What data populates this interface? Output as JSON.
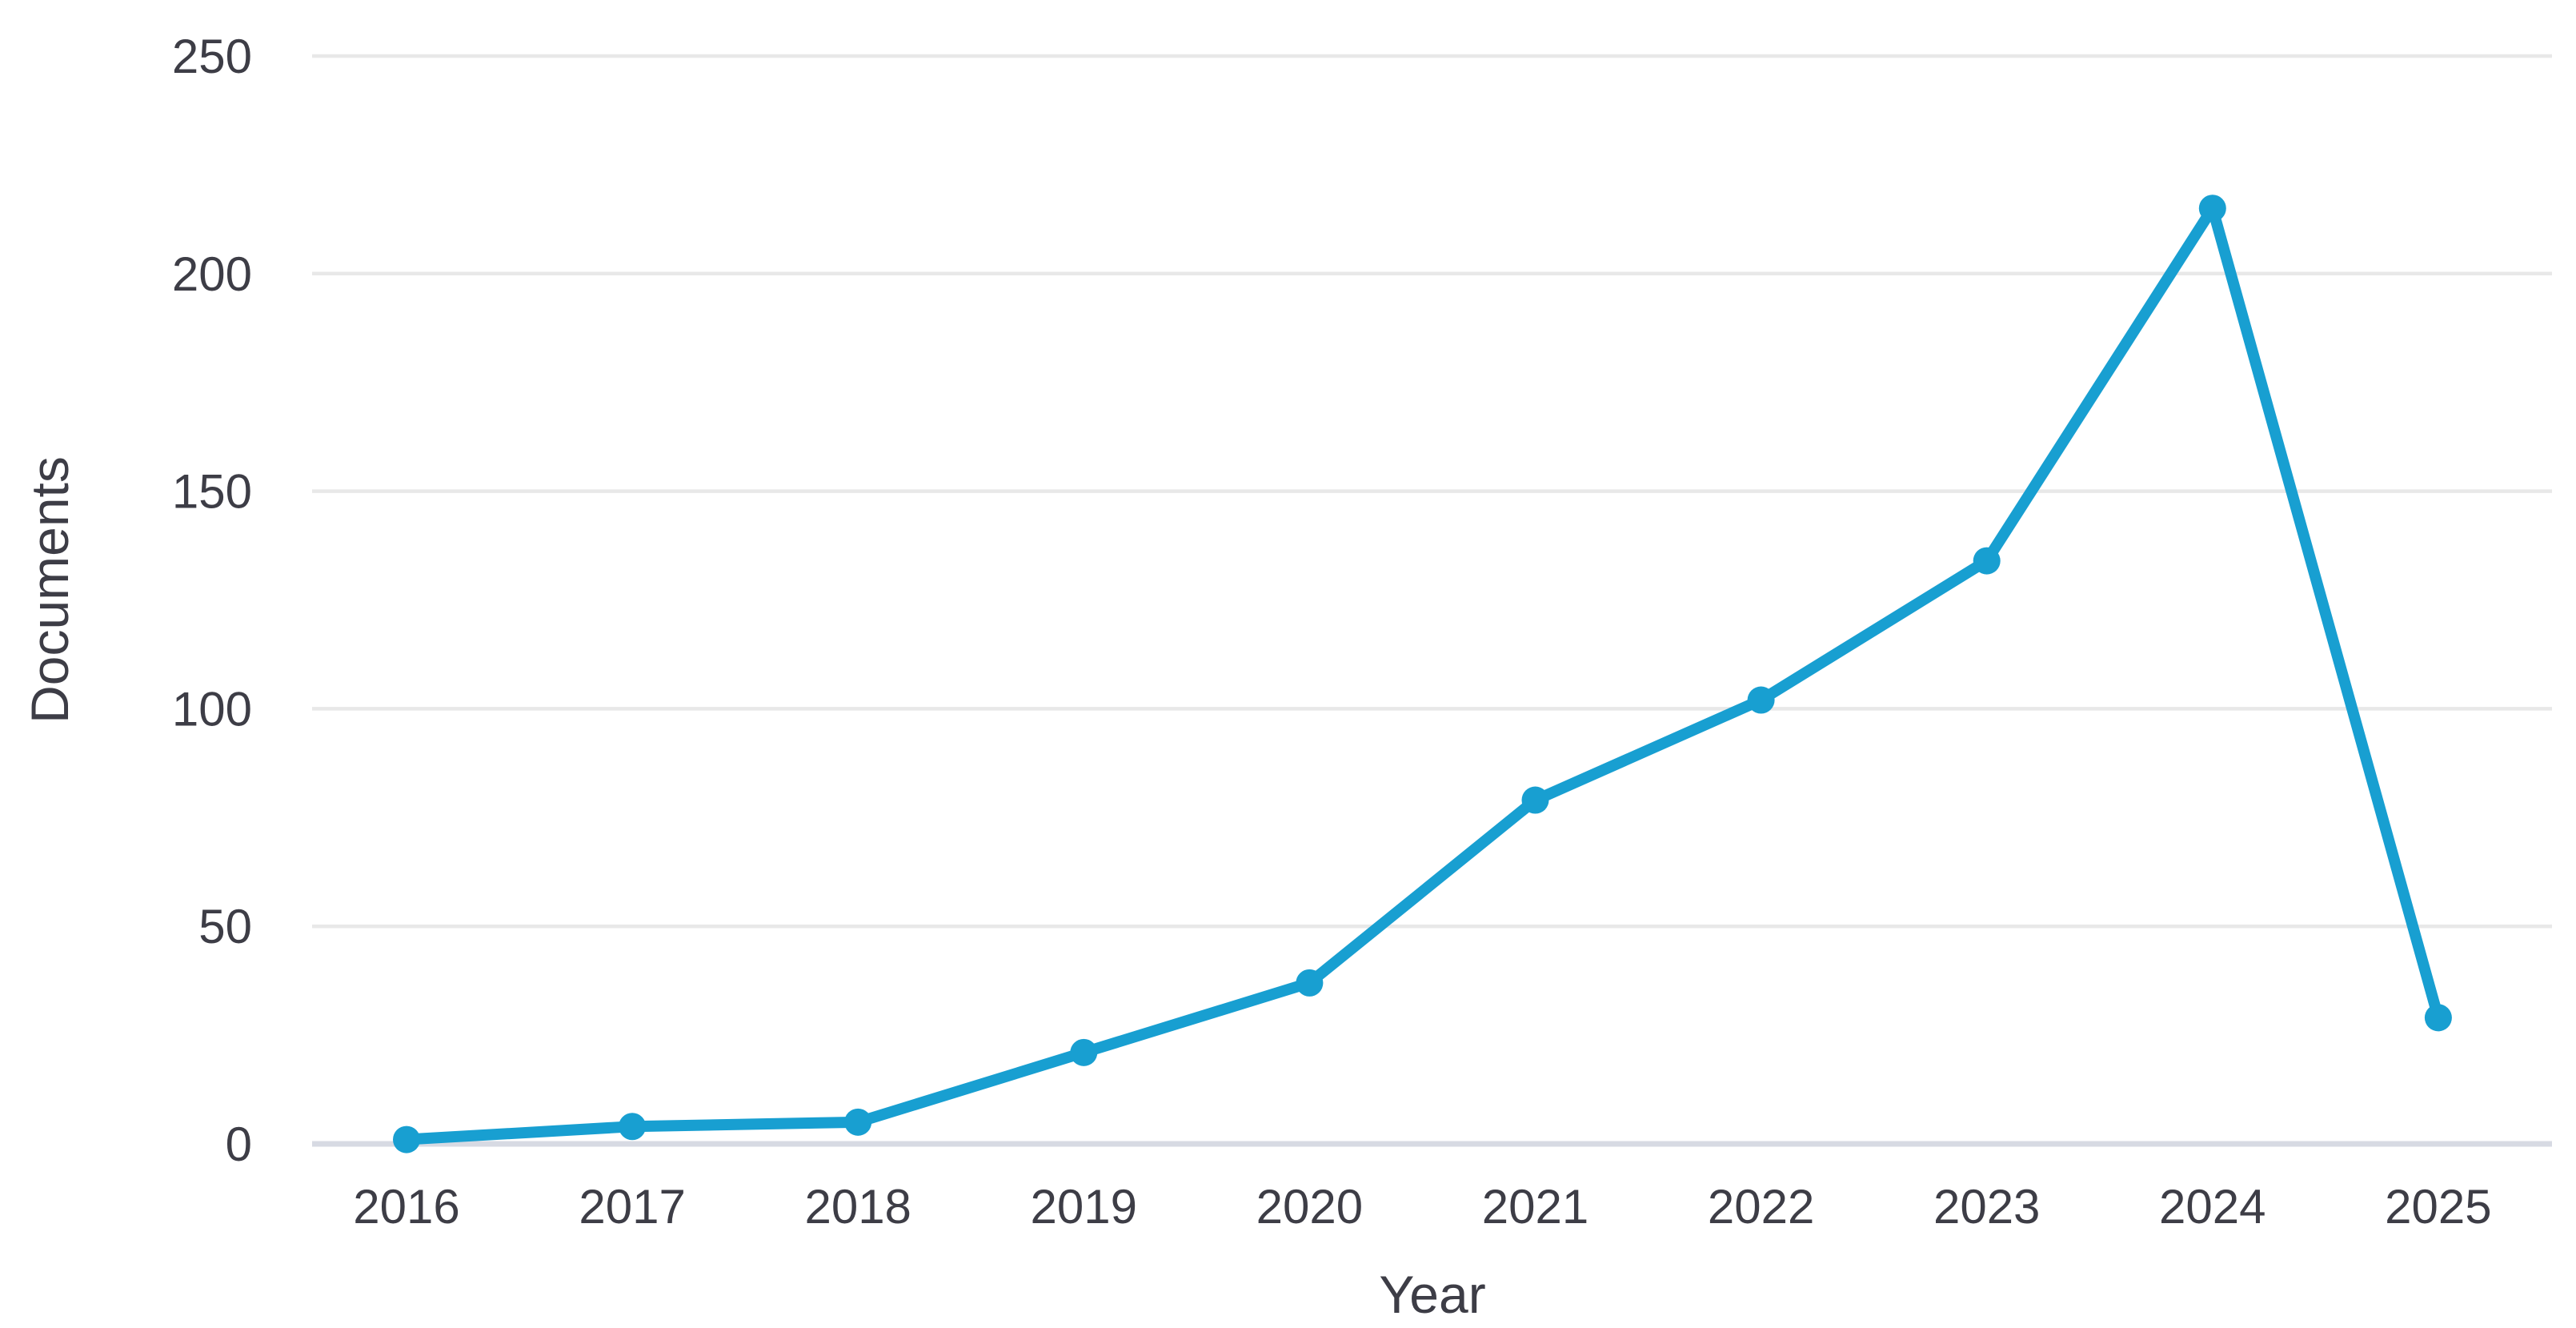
{
  "chart_data": {
    "type": "line",
    "title": "",
    "xlabel": "Year",
    "ylabel": "Documents",
    "x": [
      2016,
      2017,
      2018,
      2019,
      2020,
      2021,
      2022,
      2023,
      2024,
      2025
    ],
    "series": [
      {
        "name": "Documents",
        "values": [
          1,
          4,
          5,
          21,
          37,
          79,
          102,
          134,
          215,
          29
        ]
      }
    ],
    "ylim": [
      0,
      250
    ],
    "yticks": [
      0,
      50,
      100,
      150,
      200,
      250
    ],
    "grid": "horizontal",
    "legend": "none",
    "colors": {
      "line": "#189fd1",
      "marker": "#189fd1",
      "gridline": "#e8e8e8",
      "baseline": "#d7dae3",
      "text": "#3d3d46",
      "background": "#ffffff"
    }
  }
}
